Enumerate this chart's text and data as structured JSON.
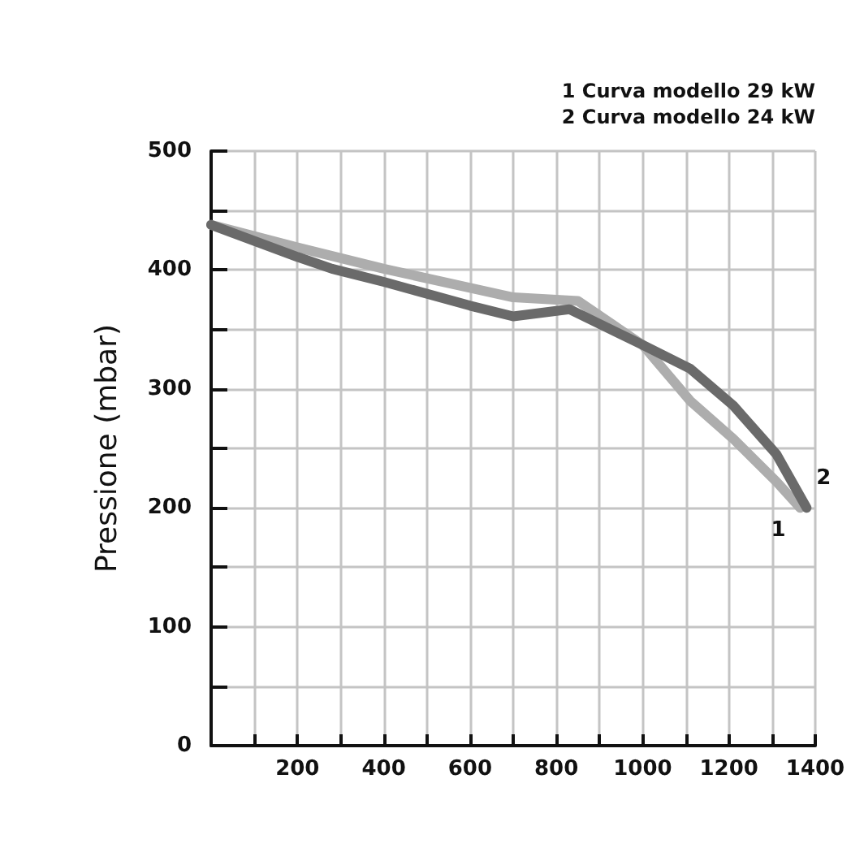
{
  "chart_data": {
    "type": "line",
    "ylabel": "Pressione (mbar)",
    "annotations": [
      "1 Curva modello 29 kW",
      "2 Curva modello 24 kW"
    ],
    "series": [
      {
        "name": "1",
        "color": "#adadad",
        "x": [
          0,
          200,
          400,
          600,
          700,
          850,
          1000,
          1110,
          1210,
          1310,
          1365
        ],
        "values": [
          438,
          419,
          401,
          385,
          377,
          374,
          337,
          290,
          258,
          222,
          200
        ]
      },
      {
        "name": "2",
        "color": "#6a6a6a",
        "x": [
          0,
          200,
          280,
          400,
          600,
          700,
          830,
          1000,
          1110,
          1210,
          1310,
          1380
        ],
        "values": [
          438,
          411,
          401,
          390,
          370,
          361,
          367,
          337,
          317,
          286,
          245,
          200
        ]
      }
    ],
    "xlim": [
      0,
      1400
    ],
    "xticks": [
      {
        "value": 0,
        "label": null
      },
      {
        "value": 100,
        "label": null
      },
      200,
      {
        "value": 300,
        "label": null
      },
      400,
      {
        "value": 500,
        "label": null
      },
      600,
      {
        "value": 700,
        "label": null
      },
      800,
      {
        "value": 900,
        "label": null
      },
      1000,
      {
        "value": 1100,
        "label": null
      },
      1200,
      {
        "value": 1300,
        "label": null
      },
      1400
    ],
    "ylim": [
      0,
      500
    ],
    "yticks": [
      0,
      {
        "value": 50,
        "label": null
      },
      100,
      {
        "value": 150,
        "label": null
      },
      200,
      {
        "value": 250,
        "label": null
      },
      300,
      {
        "value": 350,
        "label": null
      },
      400,
      {
        "value": 450,
        "label": null
      },
      500
    ],
    "grid": true,
    "marker": "none",
    "line_style": "solid"
  }
}
